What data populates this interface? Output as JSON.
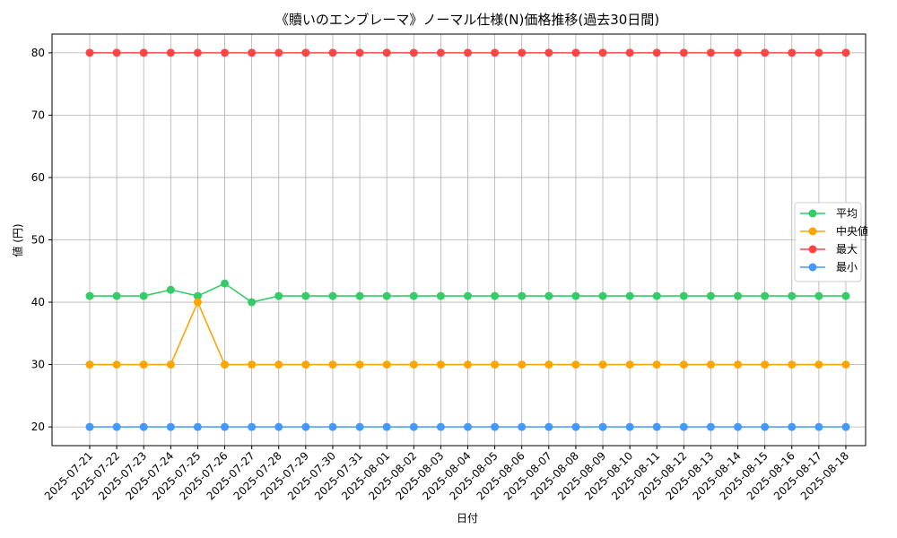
{
  "chart_data": {
    "type": "line",
    "title": "《贖いのエンブレーマ》ノーマル仕様(N)価格推移(過去30日間)",
    "xlabel": "日付",
    "ylabel": "値 (円)",
    "ylim": [
      17,
      83
    ],
    "yticks": [
      20,
      30,
      40,
      50,
      60,
      70,
      80
    ],
    "grid": true,
    "legend_position": "center-right",
    "categories": [
      "2025-07-21",
      "2025-07-22",
      "2025-07-23",
      "2025-07-24",
      "2025-07-25",
      "2025-07-26",
      "2025-07-27",
      "2025-07-28",
      "2025-07-29",
      "2025-07-30",
      "2025-07-31",
      "2025-08-01",
      "2025-08-02",
      "2025-08-03",
      "2025-08-04",
      "2025-08-05",
      "2025-08-06",
      "2025-08-07",
      "2025-08-08",
      "2025-08-09",
      "2025-08-10",
      "2025-08-11",
      "2025-08-12",
      "2025-08-13",
      "2025-08-14",
      "2025-08-15",
      "2025-08-16",
      "2025-08-17",
      "2025-08-18"
    ],
    "series": [
      {
        "name": "平均",
        "color": "#33cc66",
        "values": [
          41,
          41,
          41,
          42,
          41,
          43,
          40,
          41,
          41,
          41,
          41,
          41,
          41,
          41,
          41,
          41,
          41,
          41,
          41,
          41,
          41,
          41,
          41,
          41,
          41,
          41,
          41,
          41,
          41
        ]
      },
      {
        "name": "中央値",
        "color": "#ffa500",
        "values": [
          30,
          30,
          30,
          30,
          40,
          30,
          30,
          30,
          30,
          30,
          30,
          30,
          30,
          30,
          30,
          30,
          30,
          30,
          30,
          30,
          30,
          30,
          30,
          30,
          30,
          30,
          30,
          30,
          30
        ]
      },
      {
        "name": "最大",
        "color": "#ff4444",
        "values": [
          80,
          80,
          80,
          80,
          80,
          80,
          80,
          80,
          80,
          80,
          80,
          80,
          80,
          80,
          80,
          80,
          80,
          80,
          80,
          80,
          80,
          80,
          80,
          80,
          80,
          80,
          80,
          80,
          80
        ]
      },
      {
        "name": "最小",
        "color": "#4499ff",
        "values": [
          20,
          20,
          20,
          20,
          20,
          20,
          20,
          20,
          20,
          20,
          20,
          20,
          20,
          20,
          20,
          20,
          20,
          20,
          20,
          20,
          20,
          20,
          20,
          20,
          20,
          20,
          20,
          20,
          20
        ]
      }
    ]
  }
}
